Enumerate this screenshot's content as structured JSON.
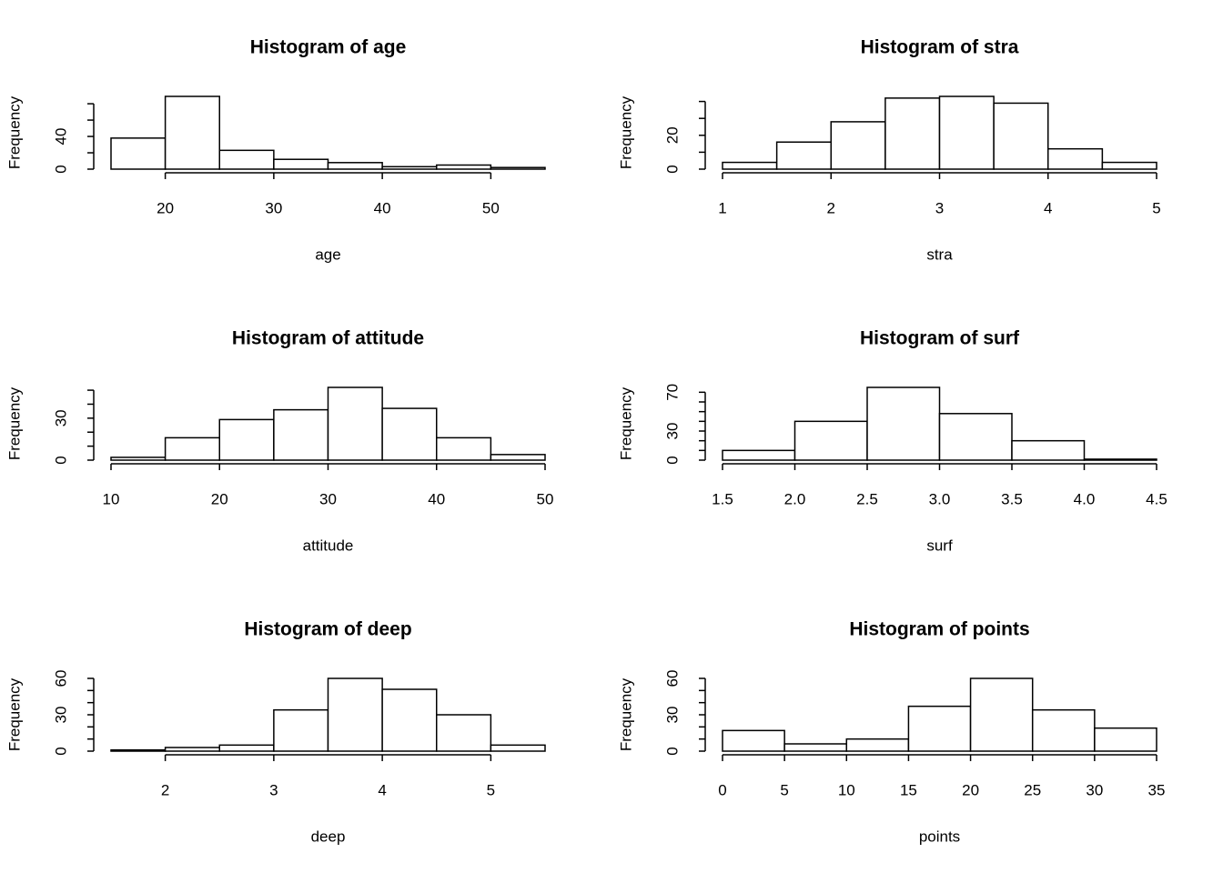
{
  "chart_data": [
    {
      "type": "histogram",
      "title": "Histogram of age",
      "xlabel": "age",
      "ylabel": "Frequency",
      "bins": [
        15,
        20,
        25,
        30,
        35,
        40,
        45,
        50,
        55
      ],
      "values": [
        38,
        89,
        23,
        12,
        8,
        3,
        5,
        2
      ],
      "xlim": [
        15,
        55
      ],
      "xticks": [
        20,
        30,
        40,
        50
      ],
      "ylim": [
        0,
        89
      ],
      "yticks": [
        0,
        {
          "value": 20,
          "label": null
        },
        40,
        {
          "value": 60,
          "label": null
        },
        {
          "value": 80,
          "label": null
        }
      ],
      "color": "#ffffff"
    },
    {
      "type": "histogram",
      "title": "Histogram of stra",
      "xlabel": "stra",
      "ylabel": "Frequency",
      "bins": [
        1,
        1.5,
        2,
        2.5,
        3,
        3.5,
        4,
        4.5,
        5
      ],
      "values": [
        4,
        16,
        28,
        42,
        43,
        39,
        12,
        4
      ],
      "xlim": [
        1,
        5
      ],
      "xticks": [
        1,
        2,
        3,
        4,
        5
      ],
      "ylim": [
        0,
        43
      ],
      "yticks": [
        0,
        {
          "value": 10,
          "label": null
        },
        20,
        {
          "value": 30,
          "label": null
        },
        {
          "value": 40,
          "label": null
        }
      ],
      "color": "#ffffff"
    },
    {
      "type": "histogram",
      "title": "Histogram of attitude",
      "xlabel": "attitude",
      "ylabel": "Frequency",
      "bins": [
        10,
        15,
        20,
        25,
        30,
        35,
        40,
        45,
        50
      ],
      "values": [
        2,
        16,
        29,
        36,
        52,
        37,
        16,
        4
      ],
      "xlim": [
        10,
        50
      ],
      "xticks": [
        10,
        20,
        30,
        40,
        50
      ],
      "ylim": [
        0,
        52
      ],
      "yticks": [
        0,
        {
          "value": 10,
          "label": null
        },
        {
          "value": 20,
          "label": null
        },
        30,
        {
          "value": 40,
          "label": null
        },
        {
          "value": 50,
          "label": null
        }
      ],
      "color": "#ffffff"
    },
    {
      "type": "histogram",
      "title": "Histogram of surf",
      "xlabel": "surf",
      "ylabel": "Frequency",
      "bins": [
        1.5,
        2,
        2.5,
        3,
        3.5,
        4,
        4.5
      ],
      "values": [
        10,
        40,
        75,
        48,
        20,
        1
      ],
      "xlim": [
        1.5,
        4.5
      ],
      "xticks": [
        1.5,
        {
          "value": 2,
          "label": "2.0"
        },
        2.5,
        {
          "value": 3,
          "label": "3.0"
        },
        3.5,
        {
          "value": 4,
          "label": "4.0"
        },
        4.5
      ],
      "ylim": [
        0,
        75
      ],
      "yticks": [
        0,
        {
          "value": 10,
          "label": null
        },
        {
          "value": 20,
          "label": null
        },
        30,
        {
          "value": 40,
          "label": null
        },
        {
          "value": 50,
          "label": null
        },
        {
          "value": 60,
          "label": null
        },
        70
      ],
      "color": "#ffffff"
    },
    {
      "type": "histogram",
      "title": "Histogram of deep",
      "xlabel": "deep",
      "ylabel": "Frequency",
      "bins": [
        1.5,
        2,
        2.5,
        3,
        3.5,
        4,
        4.5,
        5,
        5.5
      ],
      "values": [
        1,
        3,
        5,
        34,
        60,
        51,
        30,
        5
      ],
      "xlim": [
        1.5,
        5.5
      ],
      "xticks": [
        2,
        3,
        4,
        5
      ],
      "ylim": [
        0,
        60
      ],
      "yticks": [
        0,
        {
          "value": 10,
          "label": null
        },
        {
          "value": 20,
          "label": null
        },
        30,
        {
          "value": 40,
          "label": null
        },
        {
          "value": 50,
          "label": null
        },
        60
      ],
      "color": "#ffffff"
    },
    {
      "type": "histogram",
      "title": "Histogram of points",
      "xlabel": "points",
      "ylabel": "Frequency",
      "bins": [
        0,
        5,
        10,
        15,
        20,
        25,
        30,
        35
      ],
      "values": [
        17,
        6,
        10,
        37,
        60,
        34,
        19
      ],
      "xlim": [
        0,
        35
      ],
      "xticks": [
        0,
        5,
        10,
        15,
        20,
        25,
        30,
        35
      ],
      "ylim": [
        0,
        60
      ],
      "yticks": [
        0,
        {
          "value": 10,
          "label": null
        },
        {
          "value": 20,
          "label": null
        },
        30,
        {
          "value": 40,
          "label": null
        },
        {
          "value": 50,
          "label": null
        },
        60
      ],
      "color": "#ffffff"
    }
  ]
}
